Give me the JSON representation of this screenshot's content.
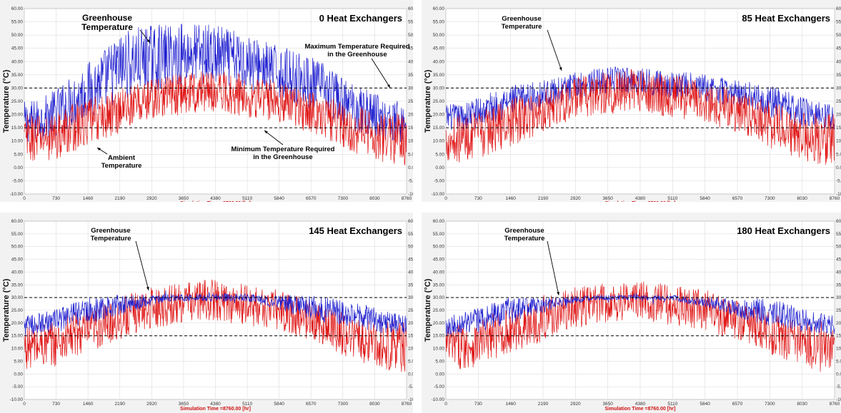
{
  "colors": {
    "greenhouse": "#1f1fd0",
    "ambient": "#e01515",
    "reference": "#000000",
    "xlabel": "#d01010"
  },
  "common": {
    "y_ticks": [
      "60.00",
      "55.00",
      "50.00",
      "45.00",
      "40.00",
      "35.00",
      "30.00",
      "25.00",
      "20.00",
      "15.00",
      "10.00",
      "5.00",
      "0.00",
      "-5.00",
      "-10.00"
    ],
    "x_ticks": [
      "0",
      "730",
      "1460",
      "2190",
      "2920",
      "3650",
      "4380",
      "5110",
      "5840",
      "6570",
      "7300",
      "8030",
      "8760"
    ],
    "ylabel": "Temperature (°C)",
    "xlabel": "Simulation Time =8760.00 [hr]"
  },
  "chart_data": [
    {
      "type": "line",
      "title": "0 Heat Exchangers",
      "xlim": [
        0,
        8760
      ],
      "ylim": [
        -10,
        60
      ],
      "reference_lines": [
        30,
        15
      ],
      "annotations": [
        {
          "text": [
            "Greenhouse",
            "Temperature"
          ]
        },
        {
          "text": [
            "Ambient",
            "Temperature"
          ]
        },
        {
          "text": [
            "Maximum Temperature Required",
            "in the Greenhouse"
          ]
        },
        {
          "text": [
            "Minimum Temperature Required",
            "in the Greenhouse"
          ]
        }
      ],
      "series": [
        {
          "role": "greenhouse",
          "x": [
            0,
            365,
            730,
            1095,
            1460,
            1825,
            2190,
            2555,
            2920,
            3285,
            3650,
            4015,
            4380,
            4745,
            5110,
            5475,
            5840,
            6205,
            6570,
            6935,
            7300,
            7665,
            8030,
            8395,
            8760
          ],
          "center": [
            17,
            18,
            21,
            25,
            29,
            33,
            38,
            40,
            41,
            42,
            43,
            43,
            42,
            41,
            40,
            38,
            36,
            34,
            32,
            29,
            25,
            22,
            20,
            18,
            16
          ],
          "spread": [
            8,
            8,
            9,
            10,
            11,
            12,
            13,
            13,
            13,
            12,
            12,
            12,
            12,
            11,
            11,
            10,
            10,
            10,
            10,
            10,
            9,
            9,
            9,
            8,
            8
          ]
        },
        {
          "role": "ambient",
          "x": [
            0,
            365,
            730,
            1095,
            1460,
            1825,
            2190,
            2555,
            2920,
            3285,
            3650,
            4015,
            4380,
            4745,
            5110,
            5475,
            5840,
            6205,
            6570,
            6935,
            7300,
            7665,
            8030,
            8395,
            8760
          ],
          "center": [
            11,
            11,
            12,
            15,
            17,
            19,
            22,
            24,
            26,
            27,
            28,
            29,
            29,
            28,
            27,
            26,
            25,
            23,
            21,
            19,
            16,
            14,
            12,
            11,
            10
          ],
          "spread": [
            9,
            9,
            9,
            9,
            9,
            9,
            9,
            8,
            8,
            8,
            8,
            8,
            8,
            8,
            8,
            8,
            8,
            8,
            8,
            8,
            9,
            9,
            9,
            10,
            10
          ]
        }
      ]
    },
    {
      "type": "line",
      "title": "85 Heat Exchangers",
      "xlim": [
        0,
        8760
      ],
      "ylim": [
        -10,
        60
      ],
      "reference_lines": [
        30,
        15
      ],
      "annotations": [
        {
          "text": [
            "Greenhouse",
            "Temperature"
          ]
        }
      ],
      "series": [
        {
          "role": "greenhouse",
          "x": [
            0,
            365,
            730,
            1095,
            1460,
            1825,
            2190,
            2555,
            2920,
            3285,
            3650,
            4015,
            4380,
            4745,
            5110,
            5475,
            5840,
            6205,
            6570,
            6935,
            7300,
            7665,
            8030,
            8395,
            8760
          ],
          "center": [
            19,
            19,
            21,
            23,
            25,
            26,
            28,
            29,
            31,
            32,
            33,
            33,
            33,
            32,
            31,
            31,
            30,
            29,
            28,
            27,
            25,
            23,
            21,
            20,
            19
          ],
          "spread": [
            5,
            5,
            6,
            6,
            6,
            6,
            5,
            5,
            5,
            5,
            5,
            5,
            5,
            5,
            5,
            5,
            5,
            5,
            5,
            5,
            6,
            6,
            6,
            5,
            5
          ]
        },
        {
          "role": "ambient",
          "x": [
            0,
            365,
            730,
            1095,
            1460,
            1825,
            2190,
            2555,
            2920,
            3285,
            3650,
            4015,
            4380,
            4745,
            5110,
            5475,
            5840,
            6205,
            6570,
            6935,
            7300,
            7665,
            8030,
            8395,
            8760
          ],
          "center": [
            11,
            11,
            12,
            15,
            17,
            19,
            22,
            24,
            26,
            27,
            28,
            29,
            29,
            28,
            27,
            26,
            25,
            23,
            21,
            19,
            16,
            14,
            12,
            11,
            10
          ],
          "spread": [
            9,
            9,
            9,
            9,
            9,
            9,
            9,
            8,
            8,
            8,
            8,
            8,
            8,
            8,
            8,
            8,
            8,
            8,
            8,
            8,
            9,
            9,
            9,
            10,
            10
          ]
        }
      ]
    },
    {
      "type": "line",
      "title": "145 Heat Exchangers",
      "xlim": [
        0,
        8760
      ],
      "ylim": [
        -10,
        60
      ],
      "reference_lines": [
        30,
        15
      ],
      "annotations": [
        {
          "text": [
            "Greenhouse",
            "Temperature"
          ]
        }
      ],
      "series": [
        {
          "role": "ambient",
          "x": [
            0,
            365,
            730,
            1095,
            1460,
            1825,
            2190,
            2555,
            2920,
            3285,
            3650,
            4015,
            4380,
            4745,
            5110,
            5475,
            5840,
            6205,
            6570,
            6935,
            7300,
            7665,
            8030,
            8395,
            8760
          ],
          "center": [
            11,
            11,
            12,
            15,
            17,
            19,
            22,
            24,
            26,
            27,
            28,
            29,
            29,
            28,
            27,
            26,
            25,
            23,
            21,
            19,
            16,
            14,
            12,
            11,
            10
          ],
          "spread": [
            9,
            9,
            9,
            9,
            9,
            9,
            9,
            8,
            8,
            8,
            8,
            8,
            8,
            8,
            8,
            8,
            8,
            8,
            8,
            8,
            9,
            9,
            9,
            10,
            10
          ]
        },
        {
          "role": "greenhouse",
          "x": [
            0,
            365,
            730,
            1095,
            1460,
            1825,
            2190,
            2555,
            2920,
            3285,
            3650,
            4015,
            4380,
            4745,
            5110,
            5475,
            5840,
            6205,
            6570,
            6935,
            7300,
            7665,
            8030,
            8395,
            8760
          ],
          "center": [
            19,
            20,
            21,
            23,
            25,
            26,
            27,
            28,
            29,
            30,
            30,
            30,
            30,
            30,
            30,
            29,
            28,
            27,
            26,
            25,
            24,
            23,
            21,
            20,
            19
          ],
          "spread": [
            4,
            4,
            5,
            5,
            5,
            5,
            4,
            3,
            2,
            1.5,
            1.5,
            1.5,
            1.5,
            1.5,
            1.5,
            2,
            3,
            4,
            5,
            5,
            5,
            5,
            5,
            4,
            4
          ]
        }
      ]
    },
    {
      "type": "line",
      "title": "180 Heat Exchangers",
      "xlim": [
        0,
        8760
      ],
      "ylim": [
        -10,
        60
      ],
      "reference_lines": [
        30,
        15
      ],
      "annotations": [
        {
          "text": [
            "Greenhouse",
            "Temperature"
          ]
        }
      ],
      "series": [
        {
          "role": "ambient",
          "x": [
            0,
            365,
            730,
            1095,
            1460,
            1825,
            2190,
            2555,
            2920,
            3285,
            3650,
            4015,
            4380,
            4745,
            5110,
            5475,
            5840,
            6205,
            6570,
            6935,
            7300,
            7665,
            8030,
            8395,
            8760
          ],
          "center": [
            11,
            11,
            12,
            15,
            17,
            19,
            22,
            24,
            26,
            27,
            28,
            29,
            29,
            28,
            27,
            26,
            25,
            23,
            21,
            19,
            16,
            14,
            12,
            11,
            10
          ],
          "spread": [
            9,
            9,
            9,
            9,
            9,
            9,
            9,
            8,
            8,
            8,
            8,
            8,
            8,
            8,
            8,
            8,
            8,
            8,
            8,
            8,
            9,
            9,
            9,
            10,
            10
          ]
        },
        {
          "role": "greenhouse",
          "x": [
            0,
            365,
            730,
            1095,
            1460,
            1825,
            2190,
            2555,
            2920,
            3285,
            3650,
            4015,
            4380,
            4745,
            5110,
            5475,
            5840,
            6205,
            6570,
            6935,
            7300,
            7665,
            8030,
            8395,
            8760
          ],
          "center": [
            19,
            20,
            21,
            23,
            25,
            26,
            27,
            28,
            29,
            30,
            30,
            30,
            30,
            30,
            30,
            29,
            28,
            27,
            26,
            25,
            24,
            23,
            21,
            20,
            19
          ],
          "spread": [
            4,
            4,
            5,
            5,
            5,
            4,
            3,
            2,
            1.5,
            1,
            1,
            1,
            1,
            1,
            1,
            1.5,
            2,
            3,
            4,
            5,
            5,
            5,
            5,
            4,
            4
          ]
        }
      ]
    }
  ]
}
